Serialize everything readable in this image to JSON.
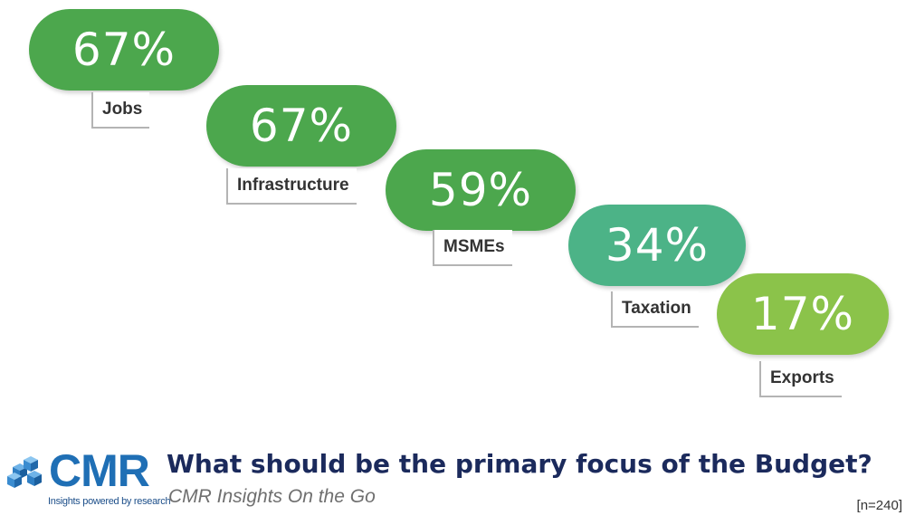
{
  "chart_data": {
    "type": "bar",
    "categories": [
      "Jobs",
      "Infrastructure",
      "MSMEs",
      "Taxation",
      "Exports"
    ],
    "values": [
      67,
      67,
      59,
      34,
      17
    ],
    "value_labels": [
      "67%",
      "67%",
      "59%",
      "34%",
      "17%"
    ],
    "unit": "%",
    "colors": [
      "#4ca74d",
      "#4ca74d",
      "#4ca74d",
      "#4cb387",
      "#8bc34a"
    ]
  },
  "footer": {
    "logo_text": "CMR",
    "logo_tagline": "Insights powered by research",
    "question": "What should be the primary focus of the Budget?",
    "subtitle": "CMR Insights On the Go",
    "sample": "[n=240]"
  }
}
